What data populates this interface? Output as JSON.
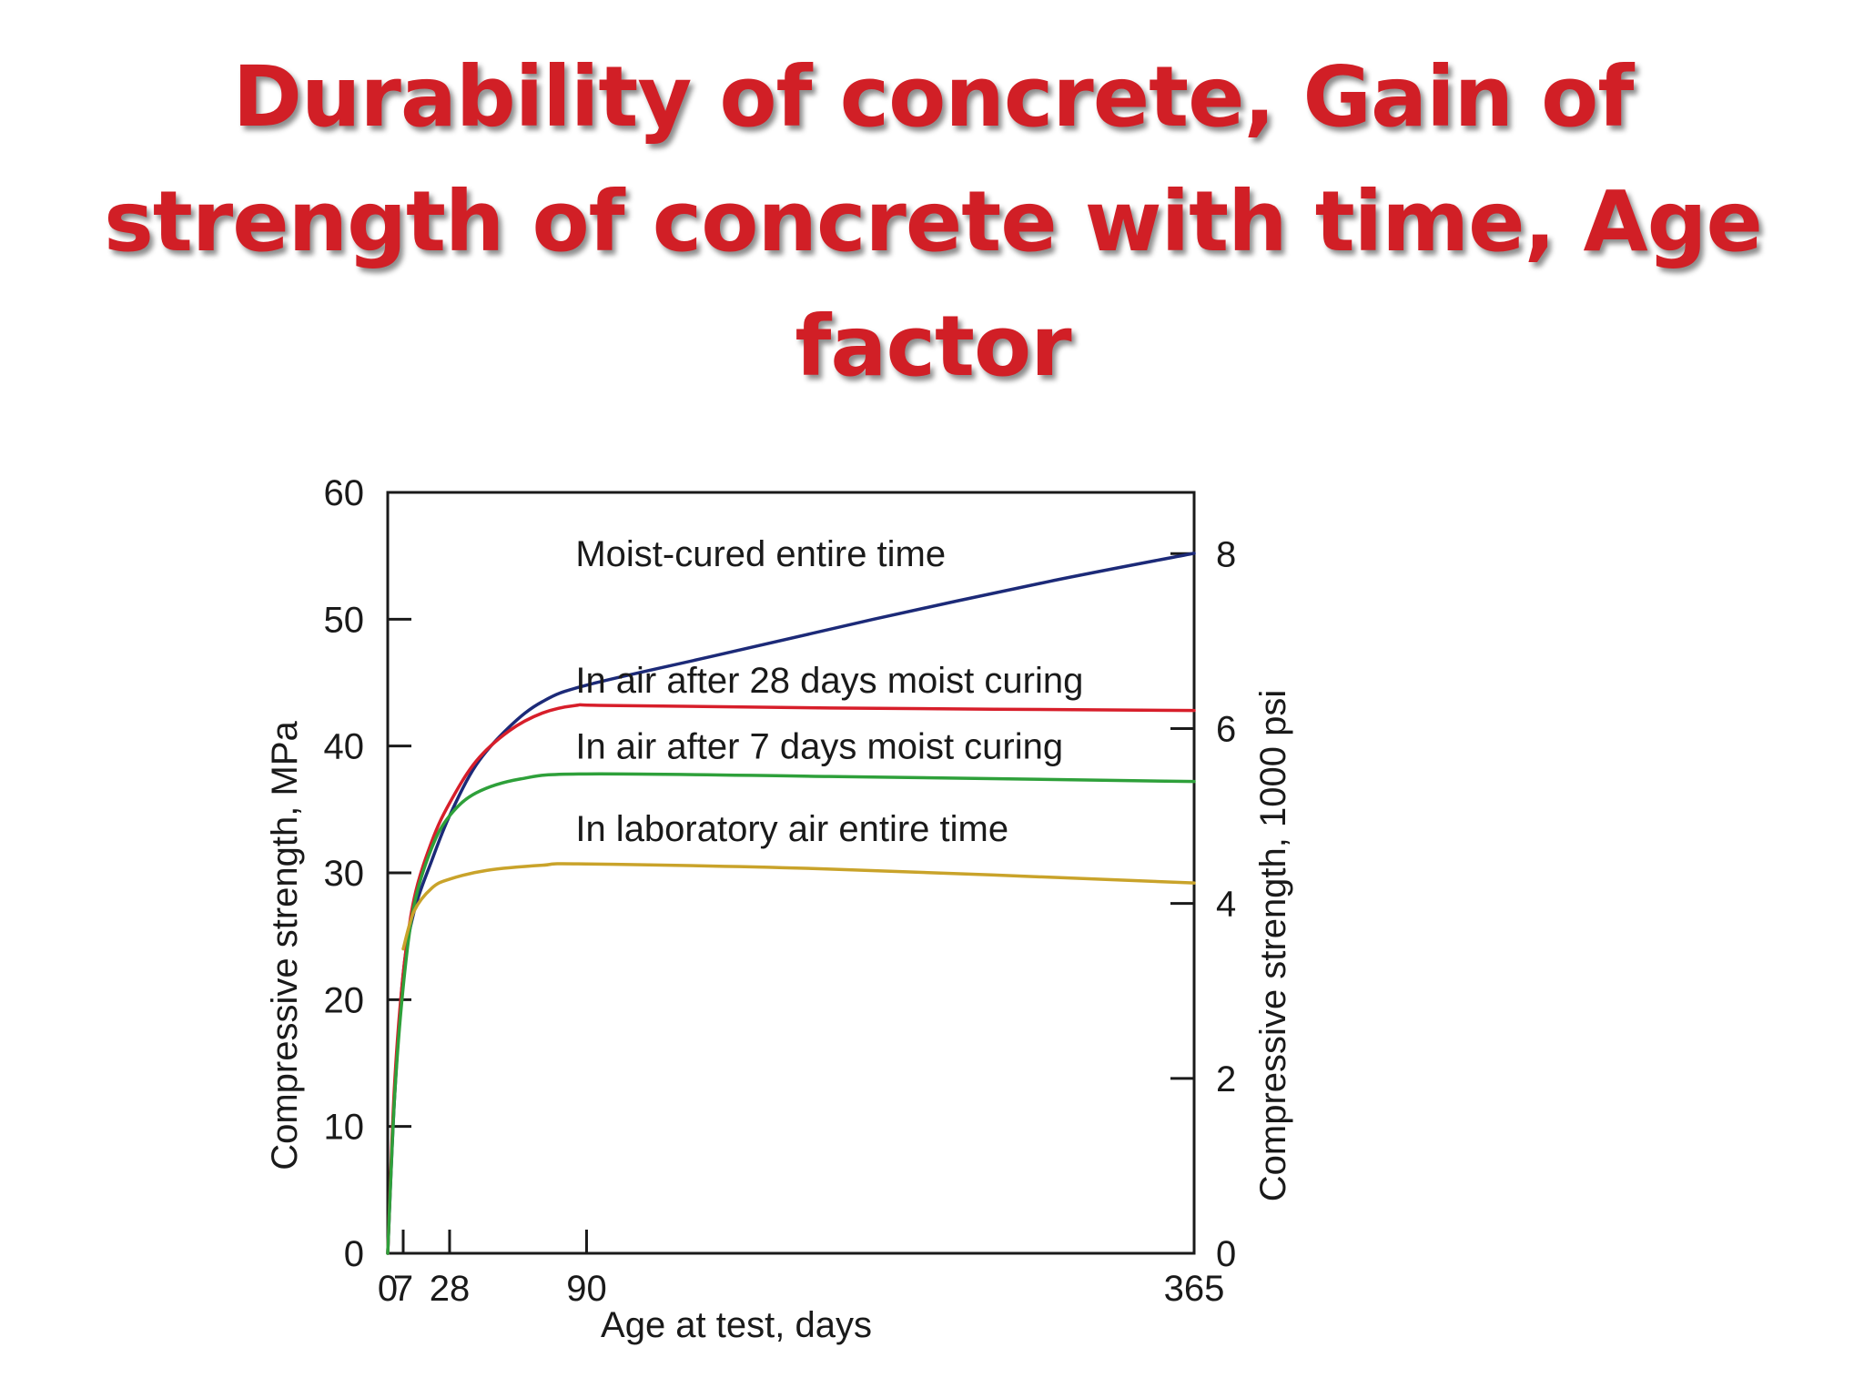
{
  "slide": {
    "title": "Durability of concrete, Gain of strength of concrete with time, Age factor"
  },
  "chart_data": {
    "type": "line",
    "title": "",
    "xlabel": "Age at test, days",
    "ylabel": "Compressive strength, MPa",
    "y2label": "Compressive strength, 1000 psi",
    "xlim": [
      0,
      365
    ],
    "ylim": [
      0,
      60
    ],
    "y2lim": [
      0,
      8.7
    ],
    "x_ticks": [
      0,
      7,
      28,
      90,
      365
    ],
    "y_ticks": [
      0,
      10,
      20,
      30,
      40,
      50,
      60
    ],
    "y2_ticks": [
      0,
      2,
      4,
      6,
      8
    ],
    "grid": false,
    "legend": "none",
    "series": [
      {
        "name": "Moist-cured entire time",
        "color": "#1c2a78",
        "label_x": 85,
        "label_y": 54.2,
        "points": [
          [
            0,
            0
          ],
          [
            3,
            12
          ],
          [
            7,
            22
          ],
          [
            12,
            27
          ],
          [
            20,
            31
          ],
          [
            28,
            34.5
          ],
          [
            40,
            38.5
          ],
          [
            55,
            41.5
          ],
          [
            70,
            43.5
          ],
          [
            90,
            44.8
          ],
          [
            150,
            47.2
          ],
          [
            220,
            50
          ],
          [
            300,
            53
          ],
          [
            365,
            55.2
          ]
        ]
      },
      {
        "name": "In air after 28 days moist curing",
        "color": "#d71e2a",
        "label_x": 85,
        "label_y": 44.2,
        "points": [
          [
            0,
            0
          ],
          [
            3,
            13
          ],
          [
            7,
            22
          ],
          [
            12,
            28
          ],
          [
            20,
            32.5
          ],
          [
            28,
            35.5
          ],
          [
            40,
            38.8
          ],
          [
            55,
            41.2
          ],
          [
            70,
            42.6
          ],
          [
            85,
            43.2
          ],
          [
            100,
            43.2
          ],
          [
            200,
            43
          ],
          [
            365,
            42.8
          ]
        ]
      },
      {
        "name": "In air after 7 days moist curing",
        "color": "#2ea03a",
        "label_x": 85,
        "label_y": 39,
        "points": [
          [
            0,
            0
          ],
          [
            3,
            12
          ],
          [
            7,
            21
          ],
          [
            12,
            27.5
          ],
          [
            20,
            32
          ],
          [
            28,
            34.5
          ],
          [
            40,
            36.3
          ],
          [
            60,
            37.4
          ],
          [
            90,
            37.8
          ],
          [
            200,
            37.6
          ],
          [
            365,
            37.2
          ]
        ]
      },
      {
        "name": "In laboratory air entire time",
        "color": "#c9a32a",
        "label_x": 85,
        "label_y": 32.5,
        "points": [
          [
            7,
            24
          ],
          [
            12,
            27
          ],
          [
            20,
            28.8
          ],
          [
            28,
            29.5
          ],
          [
            45,
            30.2
          ],
          [
            70,
            30.6
          ],
          [
            90,
            30.7
          ],
          [
            200,
            30.3
          ],
          [
            365,
            29.2
          ]
        ]
      }
    ]
  }
}
